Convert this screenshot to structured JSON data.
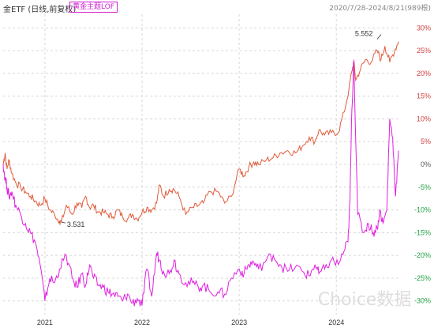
{
  "header": {
    "title": "金ETF (日线,前复权)",
    "tag": "黄金主题LOF",
    "range": "2020/7/28-2024/8/21(989根)"
  },
  "watermark": "Choice数据",
  "colors": {
    "etf_line": "#e05a3a",
    "lof_line": "#e020e0",
    "positive_axis": "#d04040",
    "negative_axis": "#20a040",
    "grid": "#d8d8d8"
  },
  "chart_data": {
    "type": "line",
    "title": "",
    "x_labels": [
      "2021",
      "2022",
      "2023",
      "2024"
    ],
    "x_label_positions": [
      2021,
      2022,
      2023,
      2024
    ],
    "x_range": [
      2020.57,
      2024.64
    ],
    "y_ticks": [
      {
        "value": 30,
        "label": "30%"
      },
      {
        "value": 25,
        "label": "25%"
      },
      {
        "value": 20,
        "label": "20%"
      },
      {
        "value": 15,
        "label": "15%"
      },
      {
        "value": 10,
        "label": "10%"
      },
      {
        "value": 5,
        "label": "5%"
      },
      {
        "value": 0,
        "label": "0%"
      },
      {
        "value": -5,
        "label": "-5%"
      },
      {
        "value": -10,
        "label": "-10%"
      },
      {
        "value": -15,
        "label": "-15%"
      },
      {
        "value": -20,
        "label": "-20%"
      },
      {
        "value": -25,
        "label": "-25%"
      },
      {
        "value": -30,
        "label": "-30%"
      }
    ],
    "ylim": [
      -33,
      33
    ],
    "annotations": [
      {
        "text": "5.552",
        "series": "ETF",
        "x": 2024.42,
        "y": 27.5
      },
      {
        "text": "3.531",
        "series": "ETF",
        "x": 2021.17,
        "y": -12.7
      }
    ],
    "series": [
      {
        "name": "金ETF",
        "x": [
          2020.57,
          2020.59,
          2020.61,
          2020.63,
          2020.66,
          2020.7,
          2020.75,
          2020.8,
          2020.85,
          2020.9,
          2020.95,
          2021.0,
          2021.05,
          2021.1,
          2021.15,
          2021.17,
          2021.22,
          2021.28,
          2021.33,
          2021.38,
          2021.42,
          2021.46,
          2021.5,
          2021.55,
          2021.6,
          2021.65,
          2021.7,
          2021.75,
          2021.8,
          2021.85,
          2021.9,
          2021.95,
          2022.0,
          2022.05,
          2022.1,
          2022.15,
          2022.18,
          2022.22,
          2022.28,
          2022.33,
          2022.38,
          2022.45,
          2022.52,
          2022.58,
          2022.63,
          2022.7,
          2022.78,
          2022.85,
          2022.92,
          2023.0,
          2023.05,
          2023.1,
          2023.15,
          2023.2,
          2023.28,
          2023.35,
          2023.42,
          2023.5,
          2023.58,
          2023.65,
          2023.72,
          2023.78,
          2023.82,
          2023.88,
          2023.95,
          2024.02,
          2024.08,
          2024.13,
          2024.16,
          2024.18,
          2024.2,
          2024.25,
          2024.3,
          2024.36,
          2024.42,
          2024.46,
          2024.5,
          2024.55,
          2024.6,
          2024.64
        ],
        "values": [
          0,
          2.5,
          -1,
          1,
          -2,
          -4,
          -5,
          -6,
          -7,
          -8,
          -9,
          -7.5,
          -10,
          -11,
          -12.5,
          -12.7,
          -9,
          -11,
          -8.5,
          -9.5,
          -7,
          -9.5,
          -9,
          -10.5,
          -10.5,
          -11,
          -11.5,
          -10,
          -11.5,
          -12,
          -11,
          -12,
          -10.5,
          -9.5,
          -10,
          -8.5,
          -4.5,
          -7,
          -5.5,
          -5.5,
          -7,
          -11,
          -9.5,
          -9,
          -8.5,
          -6,
          -6,
          -8.5,
          -7,
          -1,
          -2.5,
          -0.5,
          0.5,
          0,
          1,
          1.5,
          2.5,
          3,
          2.5,
          4,
          6,
          5,
          7.5,
          6.5,
          7,
          7,
          11.5,
          16.5,
          20.5,
          22.5,
          18.5,
          21,
          23,
          22.5,
          25,
          23,
          26,
          22.5,
          25,
          27
        ]
      },
      {
        "name": "黄金主题LOF",
        "x": [
          2020.57,
          2020.59,
          2020.61,
          2020.63,
          2020.66,
          2020.7,
          2020.75,
          2020.8,
          2020.85,
          2020.9,
          2020.95,
          2021.0,
          2021.05,
          2021.1,
          2021.15,
          2021.22,
          2021.28,
          2021.33,
          2021.38,
          2021.42,
          2021.46,
          2021.5,
          2021.55,
          2021.6,
          2021.65,
          2021.7,
          2021.75,
          2021.8,
          2021.85,
          2021.9,
          2021.95,
          2022.0,
          2022.05,
          2022.1,
          2022.15,
          2022.18,
          2022.22,
          2022.28,
          2022.33,
          2022.38,
          2022.45,
          2022.52,
          2022.58,
          2022.63,
          2022.7,
          2022.78,
          2022.85,
          2022.92,
          2023.0,
          2023.05,
          2023.1,
          2023.15,
          2023.2,
          2023.28,
          2023.35,
          2023.42,
          2023.5,
          2023.58,
          2023.65,
          2023.72,
          2023.78,
          2023.82,
          2023.88,
          2023.95,
          2024.02,
          2024.08,
          2024.12,
          2024.14,
          2024.16,
          2024.18,
          2024.22,
          2024.28,
          2024.33,
          2024.38,
          2024.42,
          2024.45,
          2024.48,
          2024.52,
          2024.55,
          2024.58,
          2024.61,
          2024.64
        ],
        "values": [
          0,
          -3,
          -5,
          -7,
          -6,
          -9,
          -11,
          -13,
          -15,
          -17,
          -22,
          -30,
          -25,
          -26,
          -23,
          -20,
          -25,
          -27,
          -24,
          -26.5,
          -22,
          -25,
          -26.5,
          -27,
          -28,
          -28.5,
          -29,
          -30,
          -28.5,
          -30.5,
          -29.5,
          -31,
          -23,
          -29,
          -19.5,
          -21,
          -23.5,
          -24,
          -21,
          -24,
          -26,
          -26,
          -27,
          -26.5,
          -28,
          -28,
          -28.5,
          -25,
          -23,
          -24,
          -22,
          -21.5,
          -23,
          -21,
          -20,
          -22,
          -23.5,
          -22.5,
          -23.5,
          -24.5,
          -22,
          -24,
          -23,
          -21,
          -22,
          -19,
          -17,
          -8,
          12,
          23,
          -11,
          -15,
          -13,
          -15,
          -14,
          -10,
          -13,
          -10,
          10,
          6,
          -7,
          3
        ]
      }
    ]
  }
}
